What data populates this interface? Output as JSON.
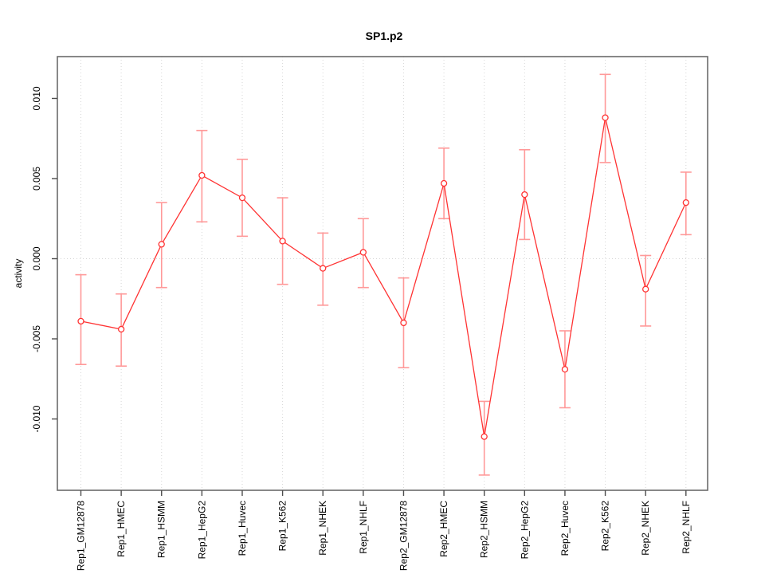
{
  "title": "SP1.p2",
  "chart_data": {
    "type": "line",
    "title": "SP1.p2",
    "xlabel": "",
    "ylabel": "activity",
    "categories": [
      "Rep1_GM12878",
      "Rep1_HMEC",
      "Rep1_HSMM",
      "Rep1_HepG2",
      "Rep1_Huvec",
      "Rep1_K562",
      "Rep1_NHEK",
      "Rep1_NHLF",
      "Rep2_GM12878",
      "Rep2_HMEC",
      "Rep2_HSMM",
      "Rep2_HepG2",
      "Rep2_Huvec",
      "Rep2_K562",
      "Rep2_NHEK",
      "Rep2_NHLF"
    ],
    "series": [
      {
        "name": "activity",
        "values": [
          -0.0039,
          -0.0044,
          0.0009,
          0.0052,
          0.0038,
          0.0011,
          -0.0006,
          0.0004,
          -0.004,
          0.0047,
          -0.0111,
          0.004,
          -0.0069,
          0.0088,
          -0.0019,
          0.0035
        ],
        "error_low": [
          -0.0066,
          -0.0067,
          -0.0018,
          0.0023,
          0.0014,
          -0.0016,
          -0.0029,
          -0.0018,
          -0.0068,
          0.0025,
          -0.0135,
          0.0012,
          -0.0093,
          0.006,
          -0.0042,
          0.0015
        ],
        "error_high": [
          -0.001,
          -0.0022,
          0.0035,
          0.008,
          0.0062,
          0.0038,
          0.0016,
          0.0025,
          -0.0012,
          0.0069,
          -0.0089,
          0.0068,
          -0.0045,
          0.0115,
          0.0002,
          0.0054
        ]
      }
    ],
    "ytick_values": [
      -0.01,
      -0.005,
      0.0,
      0.005,
      0.01
    ],
    "ytick_labels": [
      "-0.010",
      "-0.005",
      "0.000",
      "0.005",
      "0.010"
    ],
    "ylim": [
      -0.01445,
      0.01261
    ],
    "legend": "none",
    "grid": "dotted vertical line at every category; dotted horizontal line at y=0",
    "colors": {
      "line": "#ff3333",
      "point_stroke": "#ff3333",
      "point_fill": "#ffffff",
      "error_bar": "#ff9999",
      "grid_line": "#d6d6d6",
      "zero_line": "#d6d6d6",
      "box": "#6b6b6b",
      "tick": "#4d4d4d",
      "text": "#000000"
    }
  }
}
